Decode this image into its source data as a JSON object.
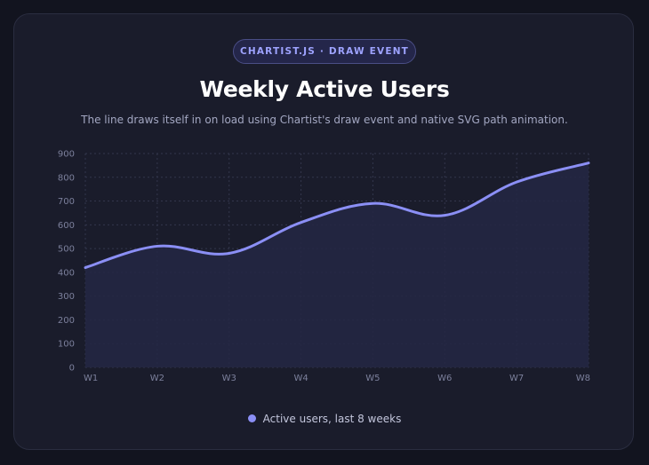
{
  "badge": "CHARTIST.JS · DRAW EVENT",
  "title": "Weekly Active Users",
  "subtitle": "The line draws itself in on load using Chartist's draw event and native SVG path animation.",
  "legend": {
    "label": "Active users, last 8 weeks",
    "color": "#8b8ff5"
  },
  "colors": {
    "line": "#8b8ff5",
    "area": "#252744",
    "grid": "#33364c"
  },
  "chart_data": {
    "type": "line",
    "smooth": true,
    "area": true,
    "grid": true,
    "categories": [
      "W1",
      "W2",
      "W3",
      "W4",
      "W5",
      "W6",
      "W7",
      "W8"
    ],
    "series": [
      {
        "name": "Active users, last 8 weeks",
        "values": [
          420,
          510,
          480,
          610,
          690,
          640,
          780,
          860
        ]
      }
    ],
    "ylim": [
      0,
      900
    ],
    "yticks": [
      0,
      100,
      200,
      300,
      400,
      500,
      600,
      700,
      800,
      900
    ],
    "legend_position": "bottom-center"
  }
}
